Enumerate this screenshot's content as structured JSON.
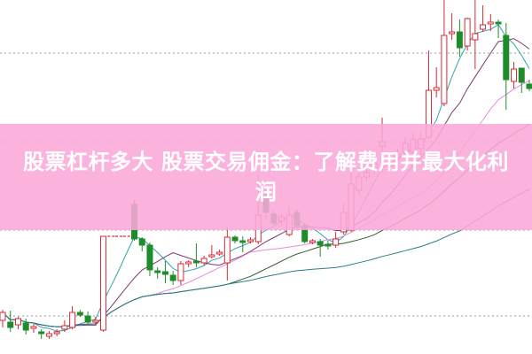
{
  "banner": {
    "title": "股票杠杆多大 股票交易佣金：了解费用并最大化利润",
    "background_color": "#faa8da",
    "text_color": "#ffffff"
  },
  "chart_data": {
    "type": "candlestick",
    "title": "",
    "xlabel": "",
    "ylabel": "",
    "ylim": [
      0,
      40
    ],
    "grid": "dotted horizontal",
    "grid_levels": [
      4.3,
      14,
      24,
      34
    ],
    "colors": {
      "up": "#d42a36",
      "down": "#1f8c2a",
      "ma_lines": [
        "#34a3a8",
        "#7b3a70",
        "#e58ade",
        "#2f5f2a",
        "#2c7c8c"
      ]
    },
    "ma_periods": [
      5,
      10,
      20,
      30,
      60
    ],
    "candles_ohlc": [
      [
        3.8,
        4.7,
        5.0,
        3.0
      ],
      [
        3.6,
        3.0,
        4.9,
        2.5
      ],
      [
        3.3,
        4.0,
        4.2,
        2.8
      ],
      [
        3.5,
        2.7,
        4.0,
        2.2
      ],
      [
        2.9,
        3.1,
        3.4,
        2.4
      ],
      [
        2.5,
        2.3,
        2.8,
        1.7
      ],
      [
        2.0,
        2.3,
        2.6,
        1.7
      ],
      [
        2.3,
        2.5,
        2.8,
        2.0
      ],
      [
        2.8,
        3.2,
        3.8,
        2.5
      ],
      [
        3.0,
        4.7,
        5.4,
        2.8
      ],
      [
        4.7,
        4.4,
        5.0,
        4.2
      ],
      [
        4.3,
        3.6,
        4.8,
        3.4
      ],
      [
        3.6,
        3.8,
        4.2,
        3.2
      ],
      [
        2.7,
        13.3,
        13.3,
        2.5
      ],
      [
        13.3,
        13.3,
        13.3,
        13.3
      ],
      [
        13.3,
        13.3,
        13.3,
        13.3
      ],
      [
        13.3,
        13.3,
        13.3,
        13.3
      ],
      [
        16.9,
        13.0,
        17.4,
        12.8
      ],
      [
        13.0,
        12.3,
        13.2,
        11.6
      ],
      [
        12.3,
        9.5,
        12.6,
        8.8
      ],
      [
        9.4,
        9.2,
        9.8,
        8.5
      ],
      [
        9.3,
        9.0,
        10.5,
        8.0
      ],
      [
        8.9,
        8.3,
        9.4,
        7.8
      ],
      [
        8.3,
        10.2,
        10.5,
        7.8
      ],
      [
        10.2,
        10.4,
        10.6,
        9.8
      ],
      [
        10.5,
        10.3,
        12.5,
        9.8
      ],
      [
        10.3,
        10.8,
        11.1,
        10.0
      ],
      [
        11.0,
        11.2,
        12.3,
        10.8
      ],
      [
        11.3,
        11.5,
        11.8,
        11.1
      ],
      [
        10.3,
        13.2,
        14.3,
        8.3
      ],
      [
        13.2,
        12.8,
        13.4,
        12.5
      ],
      [
        12.8,
        12.6,
        13.3,
        11.5
      ],
      [
        12.7,
        12.9,
        13.2,
        12.5
      ],
      [
        12.7,
        15.7,
        20.3,
        12.4
      ],
      [
        18.0,
        16.0,
        18.5,
        15.2
      ],
      [
        15.8,
        14.8,
        16.2,
        14.5
      ],
      [
        15.0,
        15.5,
        15.8,
        14.5
      ],
      [
        13.5,
        15.7,
        16.5,
        13.3
      ],
      [
        16.0,
        14.5,
        16.3,
        14.0
      ],
      [
        14.5,
        12.7,
        14.8,
        12.5
      ],
      [
        12.6,
        12.8,
        13.0,
        12.4
      ],
      [
        12.7,
        12.3,
        13.0,
        11.0
      ],
      [
        12.4,
        12.2,
        12.8,
        11.8
      ],
      [
        12.3,
        13.0,
        13.8,
        12.0
      ],
      [
        13.8,
        16.0,
        17.0,
        13.5
      ],
      [
        14.0,
        19.2,
        20.5,
        13.8
      ],
      [
        18.5,
        20.0,
        21.0,
        18.0
      ],
      [
        20.0,
        20.5,
        21.5,
        19.5
      ],
      [
        21.0,
        21.5,
        22.5,
        20.5
      ],
      [
        23.5,
        24.0,
        26.7,
        20.5
      ],
      [
        21.2,
        21.6,
        22.2,
        20.8
      ],
      [
        22.2,
        22.6,
        23.2,
        21.8
      ],
      [
        22.8,
        23.8,
        24.5,
        22.5
      ],
      [
        22.8,
        24.2,
        25.0,
        22.4
      ],
      [
        23.2,
        24.3,
        25.0,
        22.5
      ],
      [
        24.5,
        29.8,
        34.3,
        24.3
      ],
      [
        29.8,
        30.1,
        32.4,
        29.0
      ],
      [
        28.3,
        36.0,
        40.0,
        28.0
      ],
      [
        36.2,
        36.4,
        38.5,
        35.5
      ],
      [
        36.4,
        34.6,
        37.8,
        33.6
      ],
      [
        34.8,
        37.9,
        38.0,
        34.3
      ],
      [
        35.5,
        36.2,
        40.0,
        32.2
      ],
      [
        36.7,
        37.2,
        39.4,
        36.4
      ],
      [
        37.3,
        37.5,
        38.4,
        36.5
      ],
      [
        37.5,
        37.3,
        37.8,
        35.7
      ],
      [
        36.0,
        31.0,
        37.4,
        27.6
      ],
      [
        30.8,
        32.2,
        33.0,
        30.0
      ],
      [
        32.3,
        30.7,
        32.3,
        29.5
      ],
      [
        30.5,
        30.0,
        31.0,
        29.7
      ]
    ]
  }
}
